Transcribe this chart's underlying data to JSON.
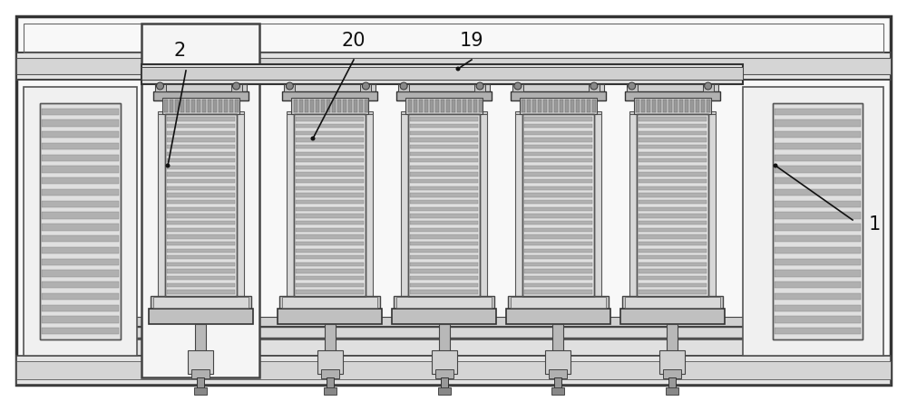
{
  "fig_width": 10.0,
  "fig_height": 4.43,
  "dpi": 100,
  "bg_color": "#ffffff",
  "label_color": "#111111",
  "line_color": "#333333",
  "mid_gray": "#aaaaaa",
  "light_gray": "#e8e8e8",
  "med_gray": "#cccccc",
  "dark_gray": "#888888",
  "stripe_light": "#d0d0d0",
  "stripe_dark": "#888888"
}
